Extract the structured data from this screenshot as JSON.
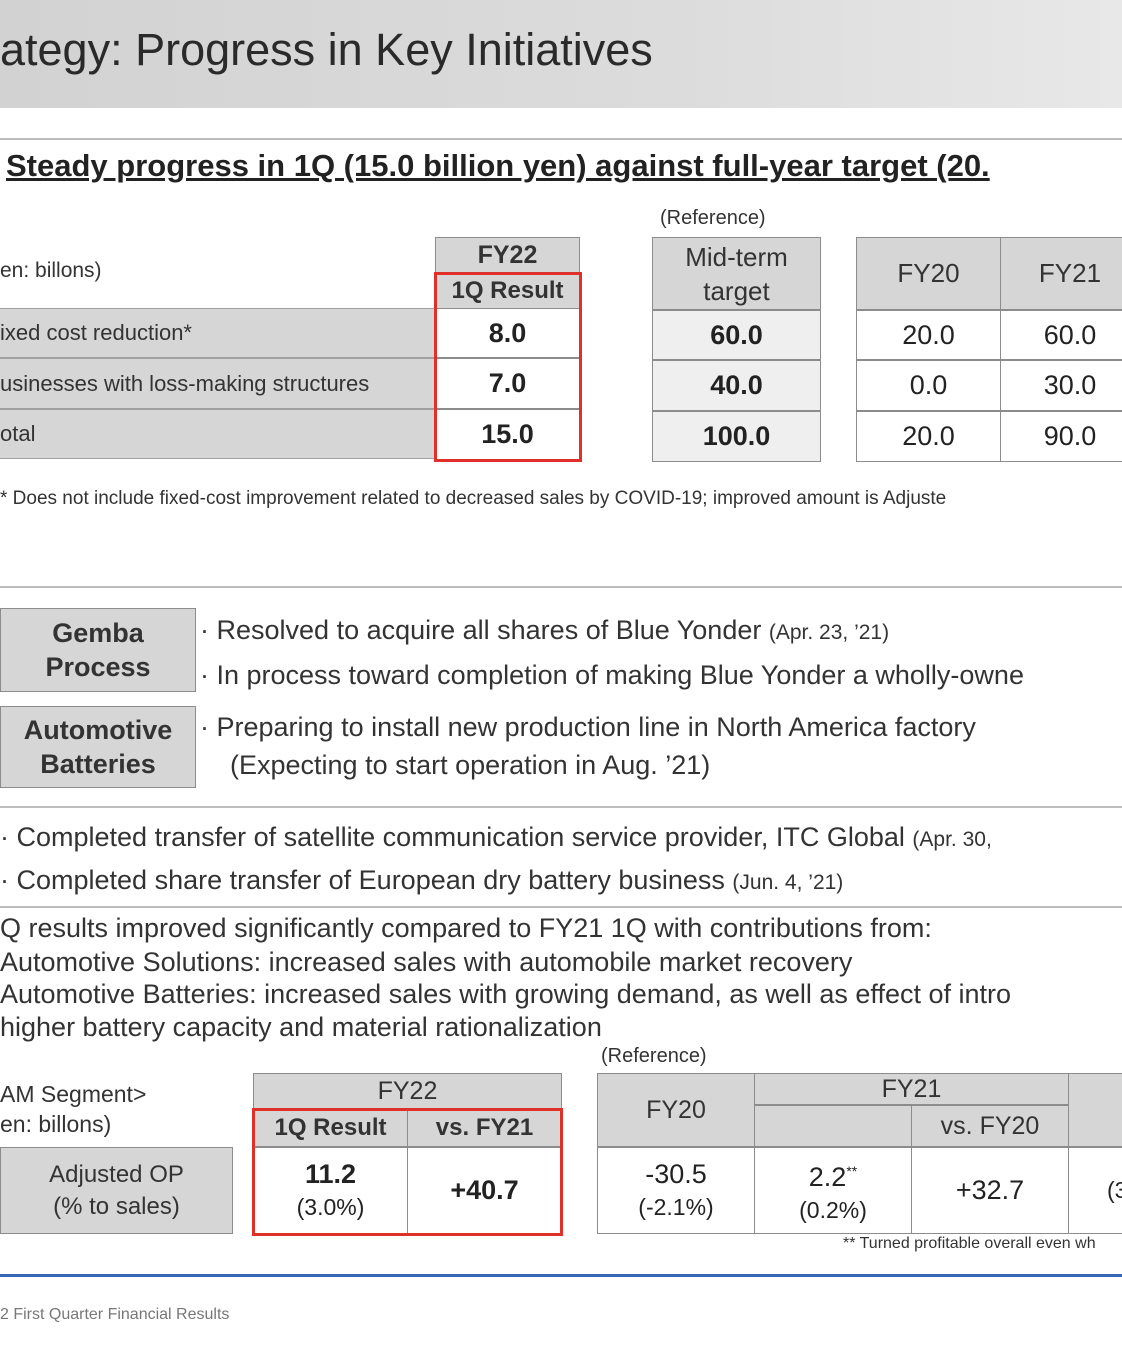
{
  "header": {
    "title": "ategy: Progress in Key Initiatives"
  },
  "section1": {
    "headline": "Steady progress in 1Q (15.0 billion yen) against full-year target (20.",
    "reference_label": "(Reference)",
    "unit_label": "en: billons)",
    "fy22_header": "FY22",
    "fy22_sub": "1Q Result",
    "midterm_line1": "Mid-term",
    "midterm_line2": "target",
    "fy20_header": "FY20",
    "fy21_header": "FY21",
    "rows": [
      {
        "label": "ixed cost reduction*",
        "q1": "8.0",
        "midterm": "60.0",
        "fy20": "20.0",
        "fy21": "60.0"
      },
      {
        "label": "usinesses  with  loss-making  structures",
        "q1": "7.0",
        "midterm": "40.0",
        "fy20": "0.0",
        "fy21": "30.0"
      },
      {
        "label": "otal",
        "q1": "15.0",
        "midterm": "100.0",
        "fy20": "20.0",
        "fy21": "90.0"
      }
    ],
    "footnote": "* Does not include fixed-cost improvement  related to decreased sales by COVID-19;  improved amount is Adjuste"
  },
  "section2": {
    "gemba_label_1": "Gemba",
    "gemba_label_2": "Process",
    "gemba_bullet_1": "Resolved to acquire all shares of Blue Yonder",
    "gemba_bullet_1_date": "(Apr. 23, ’21)",
    "gemba_bullet_2": "In process toward completion of making Blue Yonder a wholly-owne",
    "auto_label_1": "Automotive",
    "auto_label_2": "Batteries",
    "auto_bullet_1": "Preparing to install new production line in North America  factory",
    "auto_bullet_2": "(Expecting to start operation in Aug. ’21)"
  },
  "section3": {
    "bullet_1": "Completed transfer of satellite communication service  provider, ITC Global",
    "bullet_1_date": "(Apr. 30,",
    "bullet_2": "Completed share transfer of European dry battery business",
    "bullet_2_date": "(Jun. 4, ’21)"
  },
  "section4": {
    "line_1": "Q results improved significantly compared to FY21 1Q with contributions from:",
    "line_2": "Automotive  Solutions: increased sales with automobile market recovery",
    "line_3": "Automotive  Batteries: increased sales with growing demand, as well as effect of intro",
    "line_4": "higher battery capacity and material rationalization",
    "reference_label": "(Reference)",
    "segment_label": "AM Segment>",
    "unit_label": "en: billons)",
    "fy22_header": "FY22",
    "q1_header": "1Q Result",
    "vs_fy21_header": "vs. FY21",
    "fy20_header": "FY20",
    "fy21_header": "FY21",
    "vs_fy20_header": "vs. FY20",
    "row_label_1": "Adjusted OP",
    "row_label_2": "(% to sales)",
    "q1_value": "11.2",
    "q1_pct": "(3.0%)",
    "vs_fy21_value": "+40.7",
    "fy20_value": "-30.5",
    "fy20_pct": "(-2.1%)",
    "fy21_value": "2.2",
    "fy21_mark": "**",
    "fy21_pct": "(0.2%)",
    "vs_fy20_value": "+32.7",
    "partial_value": "",
    "partial_pct": "(3",
    "footnote": "** Turned profitable overall even wh"
  },
  "footer": {
    "text": "2 First Quarter  Financial  Results"
  }
}
